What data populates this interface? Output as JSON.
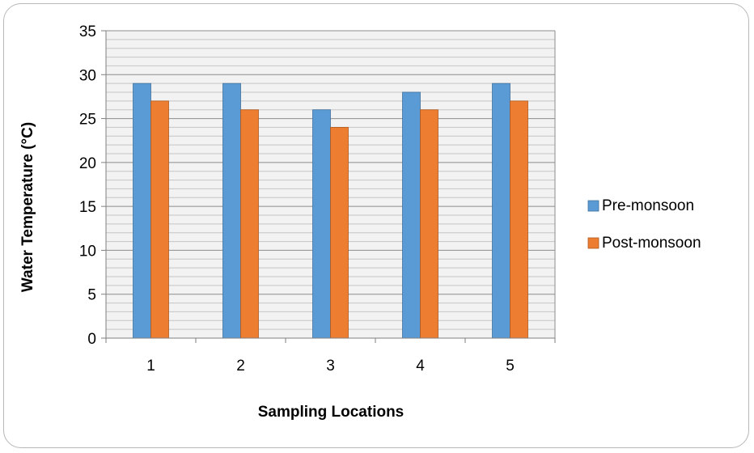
{
  "chart_data": {
    "type": "bar",
    "categories": [
      "1",
      "2",
      "3",
      "4",
      "5"
    ],
    "series": [
      {
        "name": "Pre-monsoon",
        "values": [
          29,
          29,
          26,
          28,
          29
        ],
        "color": "#5B9BD5"
      },
      {
        "name": "Post-monsoon",
        "values": [
          27,
          26,
          24,
          26,
          27
        ],
        "color": "#ED7D31"
      }
    ],
    "title": "",
    "xlabel": "Sampling Locations",
    "ylabel": "Water Temperature (°C)",
    "ylim": [
      0,
      35
    ],
    "yticks": [
      0,
      5,
      10,
      15,
      20,
      25,
      30,
      35
    ],
    "minor_gridline_step": 1,
    "grid": true,
    "legend_position": "right"
  }
}
